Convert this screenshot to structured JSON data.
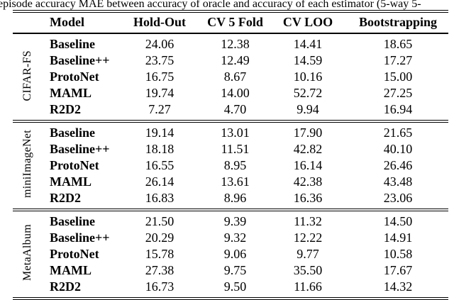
{
  "caption": "episode accuracy MAE between accuracy of oracle and accuracy of each estimator (5-way 5-",
  "colors": {
    "text": "#000000",
    "background": "#ffffff",
    "rule": "#000000"
  },
  "table": {
    "headers": [
      "Model",
      "Hold-Out",
      "CV 5 Fold",
      "CV LOO",
      "Bootstrapping"
    ],
    "groups": [
      {
        "label": "CIFAR-FS",
        "rows": [
          {
            "model": "Baseline",
            "values": [
              "24.06",
              "12.38",
              "14.41",
              "18.65"
            ]
          },
          {
            "model": "Baseline++",
            "values": [
              "23.75",
              "12.49",
              "14.59",
              "17.27"
            ]
          },
          {
            "model": "ProtoNet",
            "values": [
              "16.75",
              "8.67",
              "10.16",
              "15.00"
            ]
          },
          {
            "model": "MAML",
            "values": [
              "19.74",
              "14.00",
              "52.72",
              "27.25"
            ]
          },
          {
            "model": "R2D2",
            "values": [
              "7.27",
              "4.70",
              "9.94",
              "16.94"
            ]
          }
        ]
      },
      {
        "label": "miniImageNet",
        "rows": [
          {
            "model": "Baseline",
            "values": [
              "19.14",
              "13.01",
              "17.90",
              "21.65"
            ]
          },
          {
            "model": "Baseline++",
            "values": [
              "18.18",
              "11.51",
              "42.82",
              "40.10"
            ]
          },
          {
            "model": "ProtoNet",
            "values": [
              "16.55",
              "8.95",
              "16.14",
              "26.46"
            ]
          },
          {
            "model": "MAML",
            "values": [
              "26.14",
              "13.61",
              "42.38",
              "43.48"
            ]
          },
          {
            "model": "R2D2",
            "values": [
              "16.83",
              "8.96",
              "16.36",
              "23.06"
            ]
          }
        ]
      },
      {
        "label": "MetaAlbum",
        "rows": [
          {
            "model": "Baseline",
            "values": [
              "21.50",
              "9.39",
              "11.32",
              "14.50"
            ]
          },
          {
            "model": "Baseline++",
            "values": [
              "20.29",
              "9.32",
              "12.22",
              "14.91"
            ]
          },
          {
            "model": "ProtoNet",
            "values": [
              "15.78",
              "9.06",
              "9.77",
              "10.58"
            ]
          },
          {
            "model": "MAML",
            "values": [
              "27.38",
              "9.75",
              "35.50",
              "17.67"
            ]
          },
          {
            "model": "R2D2",
            "values": [
              "16.73",
              "9.50",
              "11.66",
              "14.32"
            ]
          }
        ]
      }
    ]
  }
}
